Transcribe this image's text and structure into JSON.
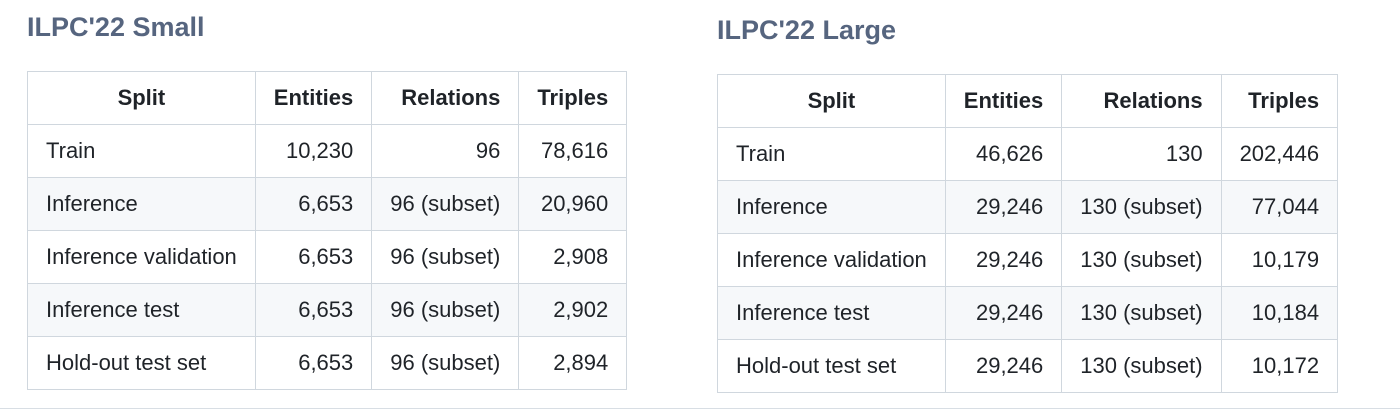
{
  "small": {
    "title": "ILPC'22 Small",
    "headers": [
      "Split",
      "Entities",
      "Relations",
      "Triples"
    ],
    "rows": [
      [
        "Train",
        "10,230",
        "96",
        "78,616"
      ],
      [
        "Inference",
        "6,653",
        "96 (subset)",
        "20,960"
      ],
      [
        "Inference validation",
        "6,653",
        "96 (subset)",
        "2,908"
      ],
      [
        "Inference test",
        "6,653",
        "96 (subset)",
        "2,902"
      ],
      [
        "Hold-out test set",
        "6,653",
        "96 (subset)",
        "2,894"
      ]
    ]
  },
  "large": {
    "title": "ILPC'22 Large",
    "headers": [
      "Split",
      "Entities",
      "Relations",
      "Triples"
    ],
    "rows": [
      [
        "Train",
        "46,626",
        "130",
        "202,446"
      ],
      [
        "Inference",
        "29,246",
        "130 (subset)",
        "77,044"
      ],
      [
        "Inference validation",
        "29,246",
        "130 (subset)",
        "10,179"
      ],
      [
        "Inference test",
        "29,246",
        "130 (subset)",
        "10,184"
      ],
      [
        "Hold-out test set",
        "29,246",
        "130 (subset)",
        "10,172"
      ]
    ]
  }
}
